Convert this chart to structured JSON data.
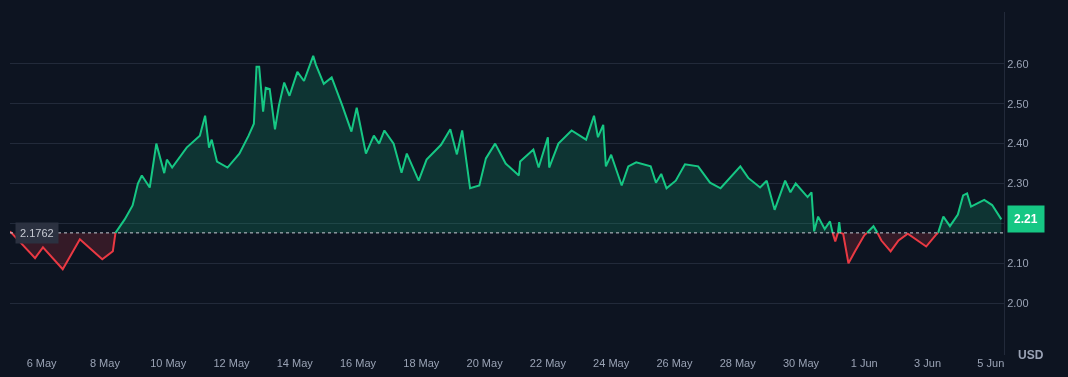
{
  "chart_data": {
    "type": "area",
    "xlim": [
      "--05-05T00:00",
      "--06-05T10:00"
    ],
    "xticks": [
      {
        "value": "--05-06",
        "label": "6 May"
      },
      {
        "value": "--05-08",
        "label": "8 May"
      },
      {
        "value": "--05-10",
        "label": "10 May"
      },
      {
        "value": "--05-12",
        "label": "12 May"
      },
      {
        "value": "--05-14",
        "label": "14 May"
      },
      {
        "value": "--05-16",
        "label": "16 May"
      },
      {
        "value": "--05-18",
        "label": "18 May"
      },
      {
        "value": "--05-20",
        "label": "20 May"
      },
      {
        "value": "--05-22",
        "label": "22 May"
      },
      {
        "value": "--05-24",
        "label": "24 May"
      },
      {
        "value": "--05-26",
        "label": "26 May"
      },
      {
        "value": "--05-28",
        "label": "28 May"
      },
      {
        "value": "--05-30",
        "label": "30 May"
      },
      {
        "value": "--06-01",
        "label": "1 Jun"
      },
      {
        "value": "--06-03",
        "label": "3 Jun"
      },
      {
        "value": "--06-05",
        "label": "5 Jun"
      }
    ],
    "ylim": [
      1.87,
      2.73
    ],
    "yticks": [
      {
        "value": 2.0,
        "label": "2.00"
      },
      {
        "value": 2.1,
        "label": "2.10"
      },
      {
        "value": 2.2,
        "label": null
      },
      {
        "value": 2.3,
        "label": "2.30"
      },
      {
        "value": 2.4,
        "label": "2.40"
      },
      {
        "value": 2.5,
        "label": "2.50"
      },
      {
        "value": 2.6,
        "label": "2.60"
      }
    ],
    "ylabel": "USD",
    "grid": "y",
    "marker": "none",
    "ref_lines": [
      {
        "axis": "y",
        "value": 2.1762,
        "label": "2.1762",
        "color": "#c8ccd4",
        "line_style": "dotted"
      }
    ],
    "annotations": [
      "2.21"
    ],
    "series": [
      {
        "color": "#16c784",
        "x": [
          "--05-08T08:00",
          "--05-08T15:00",
          "--05-08T21:00",
          "--05-09T01:00",
          "--05-09T04:00",
          "--05-09T10:00",
          "--05-09T15:00",
          "--05-09T21:00",
          "--05-09T23:00",
          "--05-10T03:00",
          "--05-10T14:00",
          "--05-11T00:00",
          "--05-11T04:00",
          "--05-11T07:00",
          "--05-11T09:00",
          "--05-11T13:00",
          "--05-11T21:00",
          "--05-12T06:00",
          "--05-12T13:00",
          "--05-12T17:00",
          "--05-12T19:00",
          "--05-12T21:00",
          "--05-13T00:00",
          "--05-13T02:00",
          "--05-13T05:00",
          "--05-13T09:00",
          "--05-13T12:00",
          "--05-13T16:00",
          "--05-13T20:00",
          "--05-14T02:00",
          "--05-14T07:00",
          "--05-14T14:00",
          "--05-14T16:00",
          "--05-14T22:00",
          "--05-15T04:00",
          "--05-15T12:00",
          "--05-15T19:00",
          "--05-15T23:00",
          "--05-16T06:00",
          "--05-16T12:00",
          "--05-16T16:00",
          "--05-16T20:00",
          "--05-17T03:00",
          "--05-17T09:00",
          "--05-17T13:00",
          "--05-17T22:00",
          "--05-18T04:00",
          "--05-18T15:00",
          "--05-18T22:00",
          "--05-19T03:00",
          "--05-19T07:00",
          "--05-19T13:00",
          "--05-19T20:00",
          "--05-20T01:00",
          "--05-20T08:00",
          "--05-20T16:00",
          "--05-21T02:00",
          "--05-21T03:00",
          "--05-21T13:00",
          "--05-21T17:00",
          "--05-22T00:00",
          "--05-22T01:00",
          "--05-22T08:00",
          "--05-22T18:00",
          "--05-23T05:00",
          "--05-23T11:00",
          "--05-23T14:00",
          "--05-23T18:00",
          "--05-23T20:00",
          "--05-24T00:00",
          "--05-24T08:00",
          "--05-24T13:00",
          "--05-24T19:00",
          "--05-25T06:00",
          "--05-25T10:00",
          "--05-25T14:00",
          "--05-25T18:00",
          "--05-26T01:00",
          "--05-26T08:00",
          "--05-26T18:00",
          "--05-27T03:00",
          "--05-27T11:00",
          "--05-28T02:00",
          "--05-28T08:00",
          "--05-28T17:00",
          "--05-28T22:00",
          "--05-29T04:00",
          "--05-29T12:00",
          "--05-29T16:00",
          "--05-29T20:00",
          "--05-30T05:00",
          "--05-30T08:00",
          "--05-30T10:00",
          "--05-30T13:00",
          "--05-30T18:00",
          "--05-30T22:00",
          "--05-31T00:00",
          "--05-31T02:00",
          "--05-31T04:00",
          "--05-31T05:00",
          "--05-31T06:00",
          "--05-31T12:00",
          "--06-01T02:00",
          "--06-01T07:00",
          "--06-01T10:00",
          "--06-01T20:00",
          "--06-03T08:00",
          "--06-03T12:00",
          "--06-03T17:00",
          "--06-03T23:00",
          "--06-04T03:00",
          "--06-04T06:00",
          "--06-04T09:00",
          "--06-04T19:00",
          "--06-05T01:00",
          "--06-05T08:00"
        ],
        "values": [
          2.1762,
          2.21,
          2.245,
          2.3,
          2.32,
          2.29,
          2.4,
          2.326,
          2.36,
          2.34,
          2.39,
          2.42,
          2.47,
          2.39,
          2.41,
          2.355,
          2.34,
          2.375,
          2.42,
          2.45,
          2.593,
          2.593,
          2.48,
          2.54,
          2.537,
          2.436,
          2.496,
          2.553,
          2.52,
          2.58,
          2.557,
          2.62,
          2.598,
          2.55,
          2.566,
          2.496,
          2.43,
          2.49,
          2.375,
          2.42,
          2.4,
          2.433,
          2.4,
          2.327,
          2.375,
          2.307,
          2.36,
          2.397,
          2.436,
          2.373,
          2.433,
          2.288,
          2.295,
          2.363,
          2.4,
          2.35,
          2.32,
          2.355,
          2.385,
          2.34,
          2.416,
          2.34,
          2.4,
          2.433,
          2.41,
          2.47,
          2.416,
          2.447,
          2.343,
          2.372,
          2.295,
          2.343,
          2.353,
          2.343,
          2.302,
          2.324,
          2.288,
          2.307,
          2.348,
          2.343,
          2.302,
          2.288,
          2.343,
          2.314,
          2.29,
          2.307,
          2.234,
          2.307,
          2.278,
          2.3,
          2.266,
          2.278,
          2.18,
          2.217,
          2.186,
          2.205,
          2.1762,
          null,
          2.1762,
          2.203,
          2.1762,
          null,
          2.1762,
          2.193,
          2.1762,
          null,
          2.1762,
          2.217,
          2.193,
          2.222,
          2.27,
          2.275,
          2.242,
          2.259,
          2.246,
          2.21
        ]
      },
      {
        "color": "#ea3943",
        "x": [
          "--05-05T00:00",
          "--05-05T19:00",
          "--05-06T01:00",
          "--05-06T16:00",
          "--05-07T05:00",
          "--05-07T22:00",
          "--05-08T06:00",
          "--05-08T08:00",
          "--05-08T09:00",
          "--05-31T00:00",
          "--05-31T02:00",
          "--05-31T04:00",
          "--05-31T05:00",
          "--05-31T06:00",
          "--05-31T08:00",
          "--05-31T12:00",
          "--05-31T17:00",
          "--06-01T00:00",
          "--06-01T02:00",
          "--06-01T05:00",
          "--06-01T10:00",
          "--06-01T13:00",
          "--06-01T20:00",
          "--06-02T02:00",
          "--06-02T09:00",
          "--06-02T23:00",
          "--06-03T06:00",
          "--06-03T08:00"
        ],
        "values": [
          2.18,
          2.113,
          2.14,
          2.085,
          2.16,
          2.11,
          2.13,
          2.1762,
          null,
          2.1762,
          2.155,
          2.1762,
          null,
          2.1762,
          2.174,
          2.1,
          2.13,
          2.17,
          2.1762,
          null,
          2.1762,
          2.157,
          2.13,
          2.157,
          2.174,
          2.142,
          2.17,
          2.1762
        ]
      }
    ]
  }
}
